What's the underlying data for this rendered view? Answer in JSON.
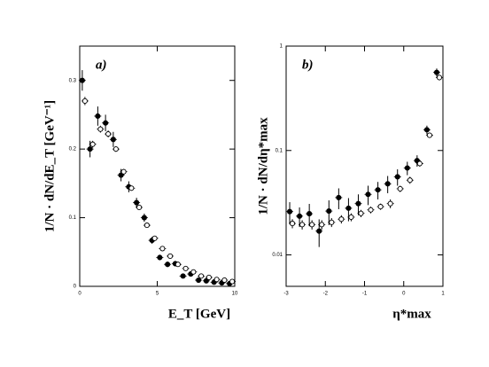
{
  "chart_data": [
    {
      "type": "scatter",
      "panel_label": "a)",
      "y_label": "1/N · dN/dE_T [GeV⁻¹]",
      "x_label": "E_T [GeV]",
      "xlim": [
        0,
        10
      ],
      "xticks": [
        0,
        5,
        10
      ],
      "ylim": [
        0,
        0.35
      ],
      "yticks": [
        0,
        0.1,
        0.2,
        0.3
      ],
      "log_y": false,
      "x": [
        0.25,
        0.75,
        1.25,
        1.75,
        2.25,
        2.75,
        3.25,
        3.75,
        4.25,
        4.75,
        5.25,
        5.75,
        6.25,
        6.75,
        7.25,
        7.75,
        8.25,
        8.75,
        9.25,
        9.75
      ],
      "series": [
        {
          "marker": "filled",
          "color": "#000000",
          "values": [
            0.3,
            0.2,
            0.248,
            0.238,
            0.214,
            0.162,
            0.145,
            0.122,
            0.1,
            0.067,
            0.042,
            0.032,
            0.033,
            0.015,
            0.018,
            0.009,
            0.008,
            0.006,
            0.005,
            0.004
          ],
          "errors": [
            0.015,
            0.012,
            0.014,
            0.012,
            0.011,
            0.009,
            0.008,
            0.007,
            0.006,
            0.005,
            0.004,
            0.004,
            0.004,
            0.003,
            0.003,
            0.002,
            0.002,
            0.002,
            0.002,
            0.002
          ]
        },
        {
          "marker": "open",
          "color": "#000000",
          "values": [
            0.27,
            0.207,
            0.229,
            0.222,
            0.2,
            0.167,
            0.143,
            0.115,
            0.089,
            0.07,
            0.055,
            0.044,
            0.032,
            0.026,
            0.021,
            0.015,
            0.013,
            0.01,
            0.009,
            0.007
          ],
          "errors": [
            0.006,
            0.005,
            0.005,
            0.005,
            0.004,
            0.004,
            0.003,
            0.003,
            0.003,
            0.002,
            0.002,
            0.002,
            0.002,
            0.001,
            0.001,
            0.001,
            0.001,
            0.001,
            0.001,
            0.001
          ]
        }
      ]
    },
    {
      "type": "scatter",
      "panel_label": "b)",
      "y_label": "1/N · dN/dη*max",
      "x_label": "η*max",
      "xlim": [
        -3,
        1
      ],
      "xticks": [
        -3,
        -2,
        -1,
        0,
        1
      ],
      "ylim": [
        0.005,
        1
      ],
      "yticks": [
        0.01,
        0.1,
        1
      ],
      "log_y": true,
      "x": [
        -2.875,
        -2.625,
        -2.375,
        -2.125,
        -1.875,
        -1.625,
        -1.375,
        -1.125,
        -0.875,
        -0.625,
        -0.375,
        -0.125,
        0.125,
        0.375,
        0.625,
        0.875
      ],
      "series": [
        {
          "marker": "filled",
          "color": "#000000",
          "values": [
            0.026,
            0.0235,
            0.0248,
            0.0169,
            0.0263,
            0.0354,
            0.028,
            0.031,
            0.038,
            0.042,
            0.048,
            0.056,
            0.068,
            0.08,
            0.158,
            0.56
          ],
          "errors": [
            0.006,
            0.005,
            0.006,
            0.005,
            0.007,
            0.008,
            0.007,
            0.007,
            0.008,
            0.008,
            0.009,
            0.01,
            0.01,
            0.01,
            0.015,
            0.05
          ]
        },
        {
          "marker": "open",
          "color": "#000000",
          "values": [
            0.02,
            0.0195,
            0.0195,
            0.0195,
            0.0205,
            0.022,
            0.023,
            0.025,
            0.027,
            0.029,
            0.031,
            0.043,
            0.052,
            0.075,
            0.14,
            0.5
          ],
          "errors": [
            0.002,
            0.002,
            0.002,
            0.002,
            0.002,
            0.002,
            0.002,
            0.002,
            0.002,
            0.002,
            0.003,
            0.003,
            0.004,
            0.005,
            0.008,
            0.03
          ]
        }
      ]
    }
  ]
}
